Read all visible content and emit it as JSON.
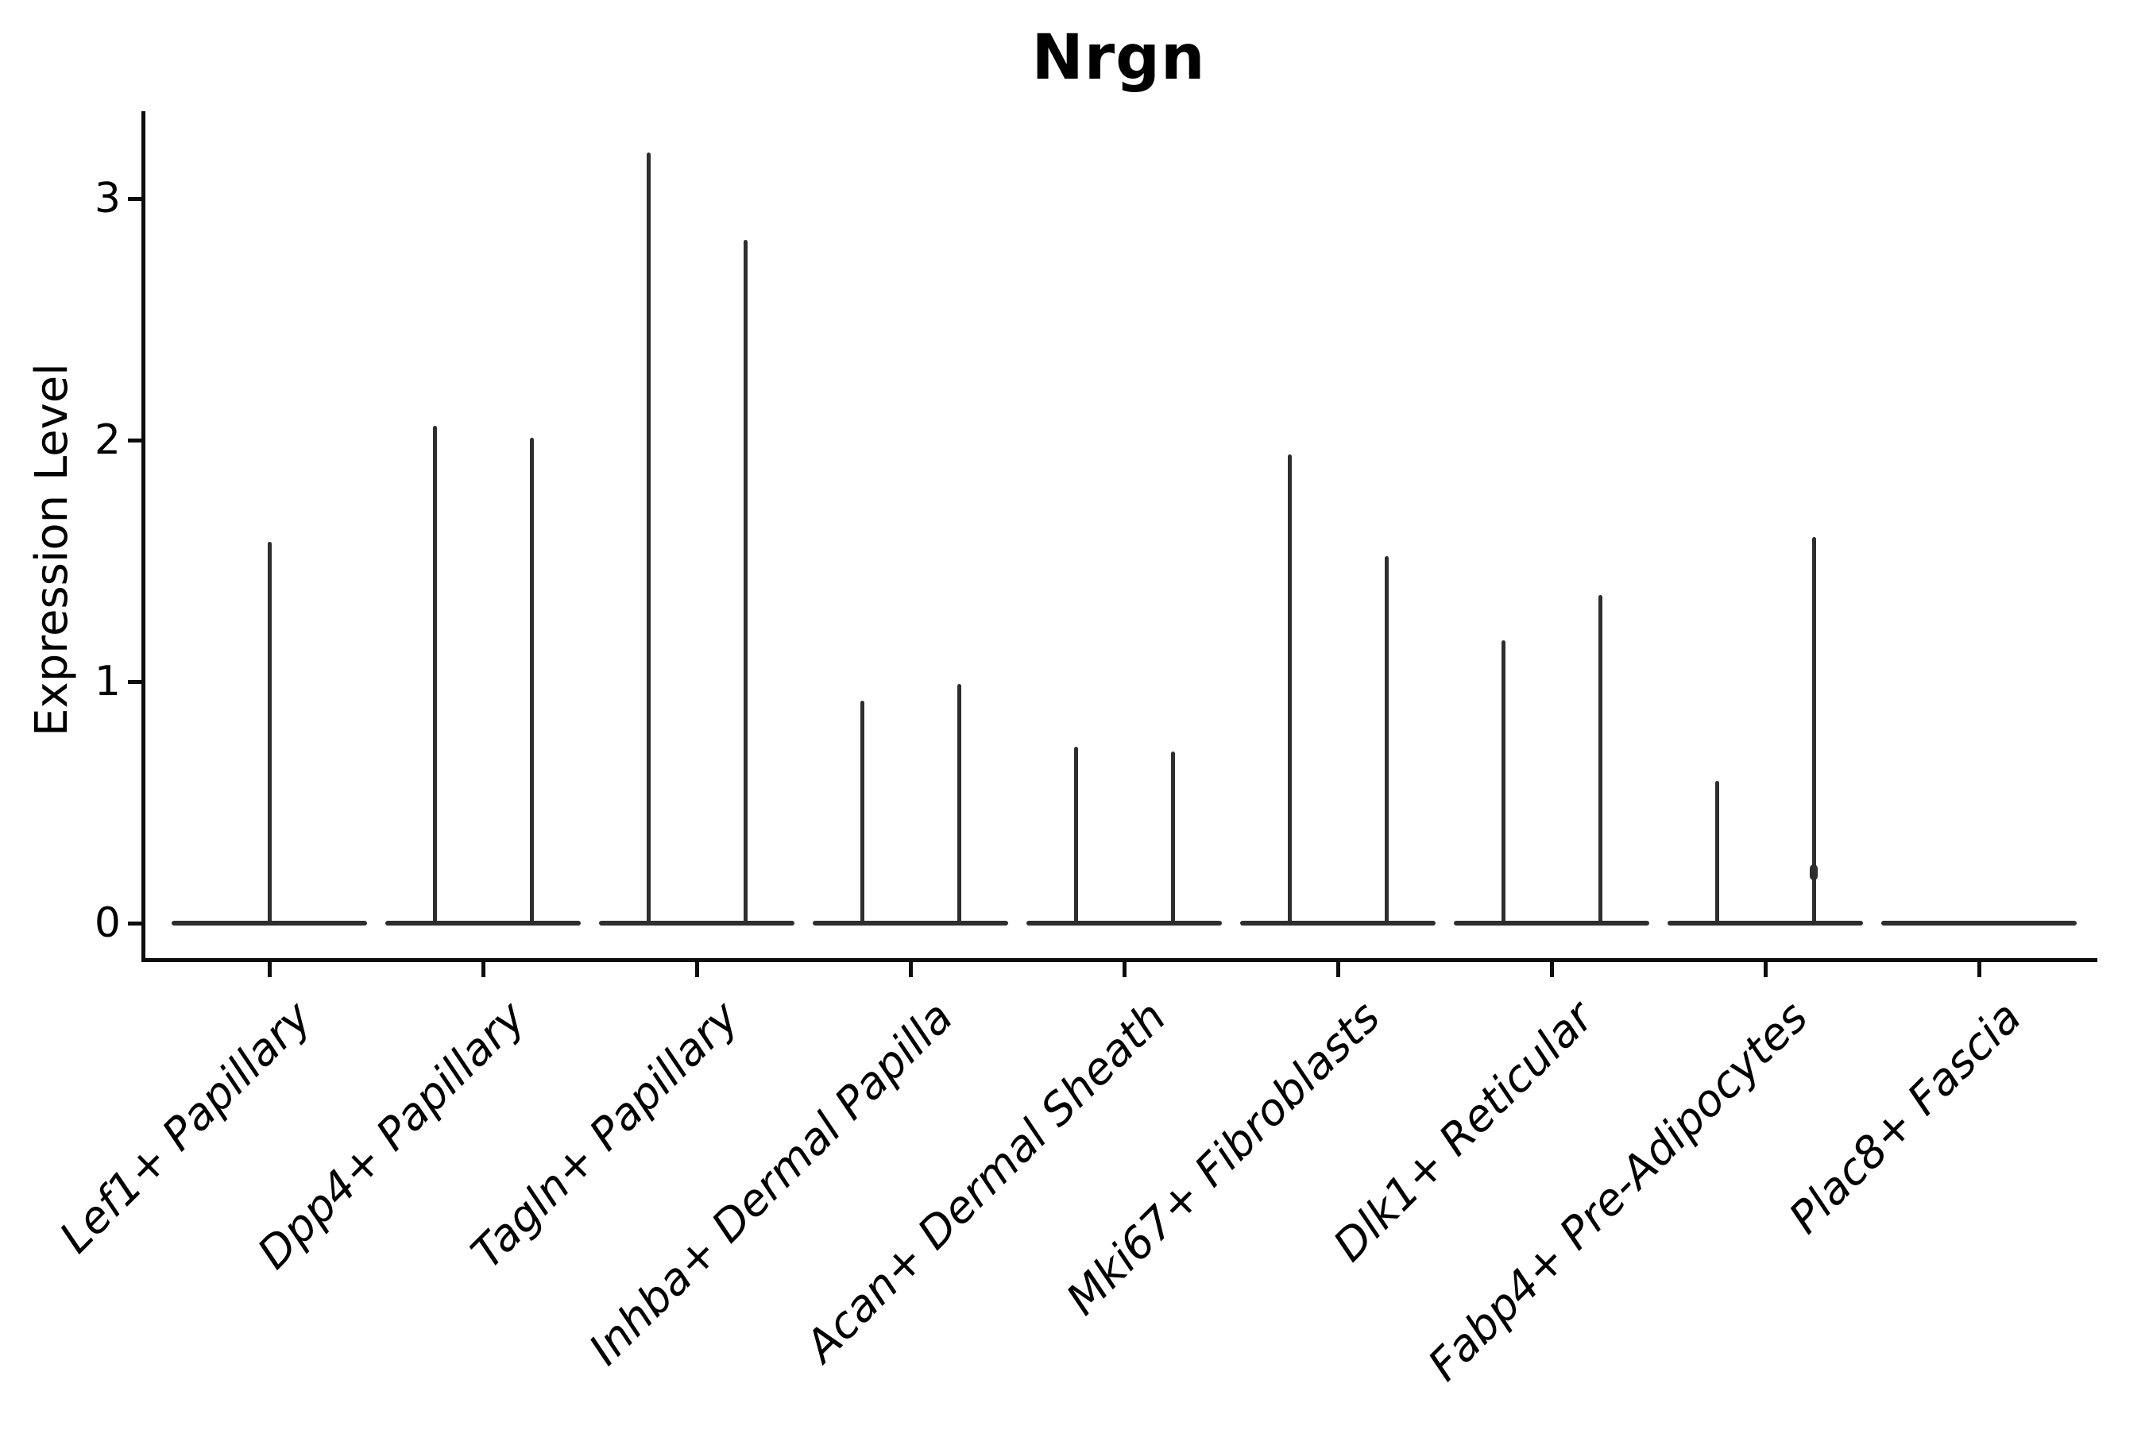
{
  "figure": {
    "title": "Nrgn"
  },
  "axes": {
    "ylabel": "Expression Level",
    "ytick_labels": [
      "0",
      "1",
      "2",
      "3"
    ]
  },
  "chart_data": {
    "type": "violin",
    "title": "Nrgn",
    "xlabel": "",
    "ylabel": "Expression Level",
    "yticks": [
      0,
      1,
      2,
      3
    ],
    "ylim": [
      -0.15,
      3.36
    ],
    "grid": false,
    "legend": "none",
    "description": "Seurat-style violin plot of Nrgn expression; violins are collapsed to a flat bar at 0 with thin spikes rising to the maximum expression values. Most categories contain two side-by-side spikes (two sub-violins).",
    "categories": [
      "Lef1+ Papillary",
      "Dpp4+ Papillary",
      "Tagln+ Papillary",
      "Inhba+ Dermal Papilla",
      "Acan+ Dermal Sheath",
      "Mki67+ Fibroblasts",
      "Dlk1+ Reticular",
      "Fabp4+ Pre-Adipocytes",
      "Plac8+ Fascia"
    ],
    "violins": [
      {
        "category": "Lef1+ Papillary",
        "base_value": 0,
        "spikes": [
          {
            "pos": "center",
            "max": 1.58
          }
        ]
      },
      {
        "category": "Dpp4+ Papillary",
        "base_value": 0,
        "spikes": [
          {
            "pos": "left",
            "max": 2.06
          },
          {
            "pos": "right",
            "max": 2.01
          }
        ]
      },
      {
        "category": "Tagln+ Papillary",
        "base_value": 0,
        "spikes": [
          {
            "pos": "left",
            "max": 3.19
          },
          {
            "pos": "right",
            "max": 2.83
          }
        ]
      },
      {
        "category": "Inhba+ Dermal Papilla",
        "base_value": 0,
        "spikes": [
          {
            "pos": "left",
            "max": 0.92
          },
          {
            "pos": "right",
            "max": 0.99
          }
        ]
      },
      {
        "category": "Acan+ Dermal Sheath",
        "base_value": 0,
        "spikes": [
          {
            "pos": "left",
            "max": 0.73
          },
          {
            "pos": "right",
            "max": 0.71
          }
        ]
      },
      {
        "category": "Mki67+ Fibroblasts",
        "base_value": 0,
        "spikes": [
          {
            "pos": "left",
            "max": 1.94
          },
          {
            "pos": "right",
            "max": 1.52
          }
        ]
      },
      {
        "category": "Dlk1+ Reticular",
        "base_value": 0,
        "spikes": [
          {
            "pos": "left",
            "max": 1.17
          },
          {
            "pos": "right",
            "max": 1.36
          }
        ]
      },
      {
        "category": "Fabp4+ Pre-Adipocytes",
        "base_value": 0,
        "spikes": [
          {
            "pos": "left",
            "max": 0.59
          },
          {
            "pos": "right",
            "max": 1.6,
            "knot_at": 0.21
          }
        ]
      },
      {
        "category": "Plac8+ Fascia",
        "base_value": 0,
        "spikes": []
      }
    ],
    "colors": {
      "violin_line": "#2e2e2e",
      "axis": "#0d0d0d",
      "text": "#000000",
      "background": "#ffffff"
    }
  }
}
